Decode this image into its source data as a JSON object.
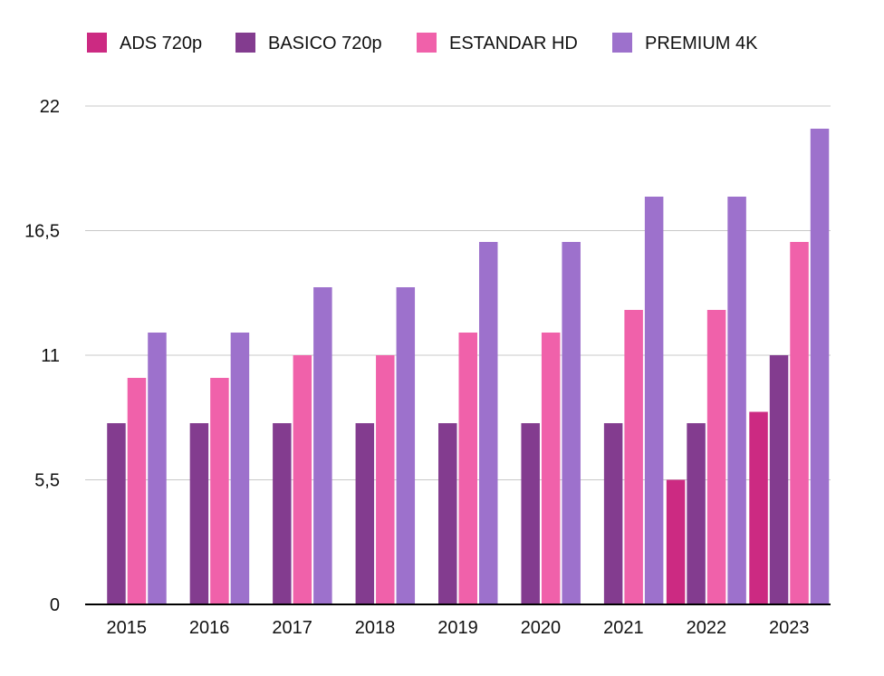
{
  "chart_data": {
    "type": "bar",
    "categories": [
      "2015",
      "2016",
      "2017",
      "2018",
      "2019",
      "2020",
      "2021",
      "2022",
      "2023"
    ],
    "series": [
      {
        "name": "ADS 720p",
        "color": "#cc2a82",
        "values": [
          null,
          null,
          null,
          null,
          null,
          null,
          null,
          5.5,
          8.5
        ]
      },
      {
        "name": "BASICO 720p",
        "color": "#833c8f",
        "values": [
          8,
          8,
          8,
          8,
          8,
          8,
          8,
          8,
          11
        ]
      },
      {
        "name": "ESTANDAR HD",
        "color": "#f061aa",
        "values": [
          10,
          10,
          11,
          11,
          12,
          12,
          13,
          13,
          16
        ]
      },
      {
        "name": "PREMIUM 4K",
        "color": "#9d71cc",
        "values": [
          12,
          12,
          14,
          14,
          16,
          16,
          18,
          18,
          21
        ]
      }
    ],
    "yticks": [
      "0",
      "5,5",
      "11",
      "16,5",
      "22"
    ],
    "ytick_values": [
      0,
      5.5,
      11,
      16.5,
      22
    ],
    "ylim": [
      0,
      22
    ],
    "grid": true,
    "legend_position": "top-left"
  }
}
